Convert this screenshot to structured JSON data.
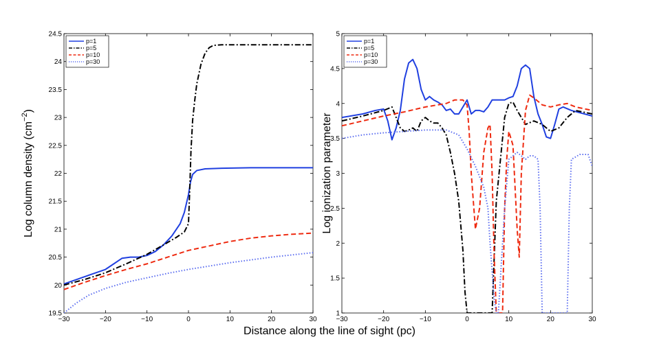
{
  "figure": {
    "xlabel": "Distance along the line of sight (pc)"
  },
  "chart_data": [
    {
      "type": "line",
      "title": "",
      "xlabel": "Distance along the line of sight (pc)",
      "ylabel": "Log column density (cm",
      "ylabel_sup": "−2",
      "ylabel_close": ")",
      "xlim": [
        -30,
        30
      ],
      "ylim": [
        19.5,
        24.5
      ],
      "xticks": [
        "−30",
        "−20",
        "−10",
        "0",
        "10",
        "20",
        "30"
      ],
      "xtick_values": [
        -30,
        -20,
        -10,
        0,
        10,
        20,
        30
      ],
      "yticks": [
        "19.5",
        "20",
        "20.5",
        "21",
        "21.5",
        "22",
        "22.5",
        "23",
        "23.5",
        "24",
        "24.5"
      ],
      "ytick_values": [
        19.5,
        20,
        20.5,
        21,
        21.5,
        22,
        22.5,
        23,
        23.5,
        24,
        24.5
      ],
      "legend_position": "top-left",
      "series": [
        {
          "name": "p=1",
          "color": "#1f3fe0",
          "style": "solid",
          "x": [
            -30,
            -25,
            -20,
            -18,
            -16,
            -14,
            -12,
            -10,
            -8,
            -6,
            -4,
            -2,
            -1,
            0,
            0.5,
            1,
            2,
            4,
            8,
            15,
            30
          ],
          "y": [
            20.02,
            20.15,
            20.28,
            20.38,
            20.48,
            20.5,
            20.5,
            20.53,
            20.6,
            20.72,
            20.88,
            21.1,
            21.3,
            21.62,
            21.85,
            21.98,
            22.05,
            22.08,
            22.09,
            22.1,
            22.1
          ]
        },
        {
          "name": "p=5",
          "color": "#000000",
          "style": "dashdot",
          "x": [
            -30,
            -25,
            -20,
            -15,
            -10,
            -6,
            -3,
            -1,
            0,
            0.3,
            0.6,
            1,
            1.5,
            2,
            3,
            4,
            5,
            6,
            8,
            15,
            30
          ],
          "y": [
            20.0,
            20.1,
            20.22,
            20.38,
            20.55,
            20.72,
            20.85,
            20.95,
            21.1,
            21.7,
            22.4,
            22.95,
            23.3,
            23.6,
            23.95,
            24.15,
            24.25,
            24.29,
            24.3,
            24.3,
            24.3
          ]
        },
        {
          "name": "p=10",
          "color": "#ee2a10",
          "style": "dashed",
          "x": [
            -30,
            -25,
            -20,
            -15,
            -10,
            -5,
            0,
            5,
            10,
            15,
            20,
            25,
            30
          ],
          "y": [
            19.92,
            20.05,
            20.17,
            20.28,
            20.38,
            20.5,
            20.62,
            20.7,
            20.78,
            20.84,
            20.88,
            20.91,
            20.93
          ]
        },
        {
          "name": "p=30",
          "color": "#5a6cf0",
          "style": "dotted",
          "x": [
            -30,
            -27,
            -24,
            -20,
            -15,
            -10,
            -5,
            0,
            5,
            10,
            15,
            20,
            25,
            30
          ],
          "y": [
            19.5,
            19.68,
            19.82,
            19.94,
            20.05,
            20.13,
            20.21,
            20.28,
            20.34,
            20.4,
            20.45,
            20.5,
            20.54,
            20.58
          ]
        }
      ]
    },
    {
      "type": "line",
      "title": "",
      "xlabel": "Distance along the line of sight (pc)",
      "ylabel": "Log ionization parameter",
      "xlim": [
        -30,
        30
      ],
      "ylim": [
        1,
        5
      ],
      "xticks": [
        "−30",
        "−20",
        "−10",
        "0",
        "10",
        "20",
        "30"
      ],
      "xtick_values": [
        -30,
        -20,
        -10,
        0,
        10,
        20,
        30
      ],
      "yticks": [
        "1",
        "1.5",
        "2",
        "2.5",
        "3",
        "3.5",
        "4",
        "4.5",
        "5"
      ],
      "ytick_values": [
        1,
        1.5,
        2,
        2.5,
        3,
        3.5,
        4,
        4.5,
        5
      ],
      "legend_position": "top-left",
      "series": [
        {
          "name": "p=1",
          "color": "#1f3fe0",
          "style": "solid",
          "x": [
            -30,
            -25,
            -22,
            -20,
            -19,
            -18,
            -17,
            -16,
            -15,
            -14,
            -13,
            -12,
            -11,
            -10,
            -9,
            -8,
            -7,
            -6,
            -5,
            -4,
            -3,
            -2,
            -1,
            0,
            1,
            2,
            3,
            4,
            5,
            6,
            7,
            8,
            9,
            10,
            11,
            12,
            13,
            14,
            15,
            16,
            17,
            18,
            19,
            20,
            21,
            22,
            23,
            25,
            30
          ],
          "y": [
            3.8,
            3.85,
            3.9,
            3.92,
            3.75,
            3.48,
            3.65,
            3.9,
            4.35,
            4.58,
            4.63,
            4.5,
            4.2,
            4.05,
            4.1,
            4.05,
            4.02,
            3.98,
            3.9,
            3.92,
            3.85,
            3.85,
            3.95,
            4.05,
            3.85,
            3.9,
            3.9,
            3.88,
            3.95,
            4.05,
            4.05,
            4.05,
            4.05,
            4.08,
            4.1,
            4.25,
            4.5,
            4.55,
            4.5,
            4.1,
            3.85,
            3.7,
            3.52,
            3.5,
            3.7,
            3.92,
            3.95,
            3.9,
            3.82
          ]
        },
        {
          "name": "p=5",
          "color": "#000000",
          "style": "dashdot",
          "x": [
            -30,
            -25,
            -20,
            -18,
            -17,
            -16,
            -15,
            -14,
            -13,
            -12,
            -11,
            -10,
            -9,
            -8,
            -7,
            -6,
            -5,
            -4,
            -3,
            -2,
            -1,
            -0.5,
            0,
            0.5,
            1,
            3,
            5,
            6,
            7,
            8,
            9,
            10,
            11,
            12,
            14,
            16,
            18,
            20,
            22,
            24,
            26,
            30
          ],
          "y": [
            3.75,
            3.82,
            3.9,
            3.95,
            3.8,
            3.65,
            3.6,
            3.62,
            3.65,
            3.6,
            3.75,
            3.8,
            3.75,
            3.72,
            3.72,
            3.65,
            3.55,
            3.3,
            3.0,
            2.6,
            1.9,
            1.3,
            1.0,
            1.0,
            1.0,
            1.0,
            1.0,
            1.0,
            2.6,
            3.2,
            3.8,
            4.0,
            4.02,
            3.9,
            3.7,
            3.75,
            3.7,
            3.6,
            3.65,
            3.8,
            3.9,
            3.85
          ]
        },
        {
          "name": "p=10",
          "color": "#ee2a10",
          "style": "dashed",
          "x": [
            -30,
            -25,
            -20,
            -15,
            -10,
            -5,
            -3,
            -1,
            0,
            0.5,
            1,
            2,
            3,
            4,
            5,
            5.5,
            6,
            6.5,
            7,
            7.5,
            8,
            8.5,
            9,
            9.5,
            10,
            11,
            12,
            12.5,
            13,
            14,
            15,
            16,
            18,
            20,
            22,
            24,
            26,
            30
          ],
          "y": [
            3.68,
            3.75,
            3.82,
            3.88,
            3.95,
            4.0,
            4.05,
            4.05,
            3.98,
            3.6,
            3.0,
            2.2,
            2.5,
            3.3,
            3.65,
            3.7,
            3.0,
            1.8,
            1.0,
            1.0,
            1.0,
            1.0,
            2.5,
            3.2,
            3.6,
            3.4,
            2.2,
            1.8,
            3.0,
            3.9,
            4.12,
            4.08,
            3.98,
            3.95,
            3.98,
            4.0,
            3.95,
            3.9
          ]
        },
        {
          "name": "p=30",
          "color": "#5a6cf0",
          "style": "dotted",
          "x": [
            -30,
            -25,
            -20,
            -15,
            -10,
            -5,
            -2,
            0,
            2,
            4,
            5,
            5.5,
            6,
            6.5,
            7,
            7.5,
            8,
            9,
            10,
            12,
            14,
            15,
            16,
            17,
            17.5,
            18,
            20,
            23,
            24,
            24.5,
            25,
            27,
            29,
            30
          ],
          "y": [
            3.5,
            3.55,
            3.58,
            3.6,
            3.62,
            3.62,
            3.55,
            3.35,
            3.1,
            2.8,
            2.5,
            2.0,
            1.6,
            1.2,
            1.0,
            1.0,
            1.5,
            2.5,
            3.2,
            3.3,
            3.2,
            3.25,
            3.25,
            3.2,
            2.5,
            1.0,
            1.0,
            1.0,
            1.0,
            2.5,
            3.2,
            3.27,
            3.27,
            3.1
          ]
        }
      ]
    }
  ]
}
